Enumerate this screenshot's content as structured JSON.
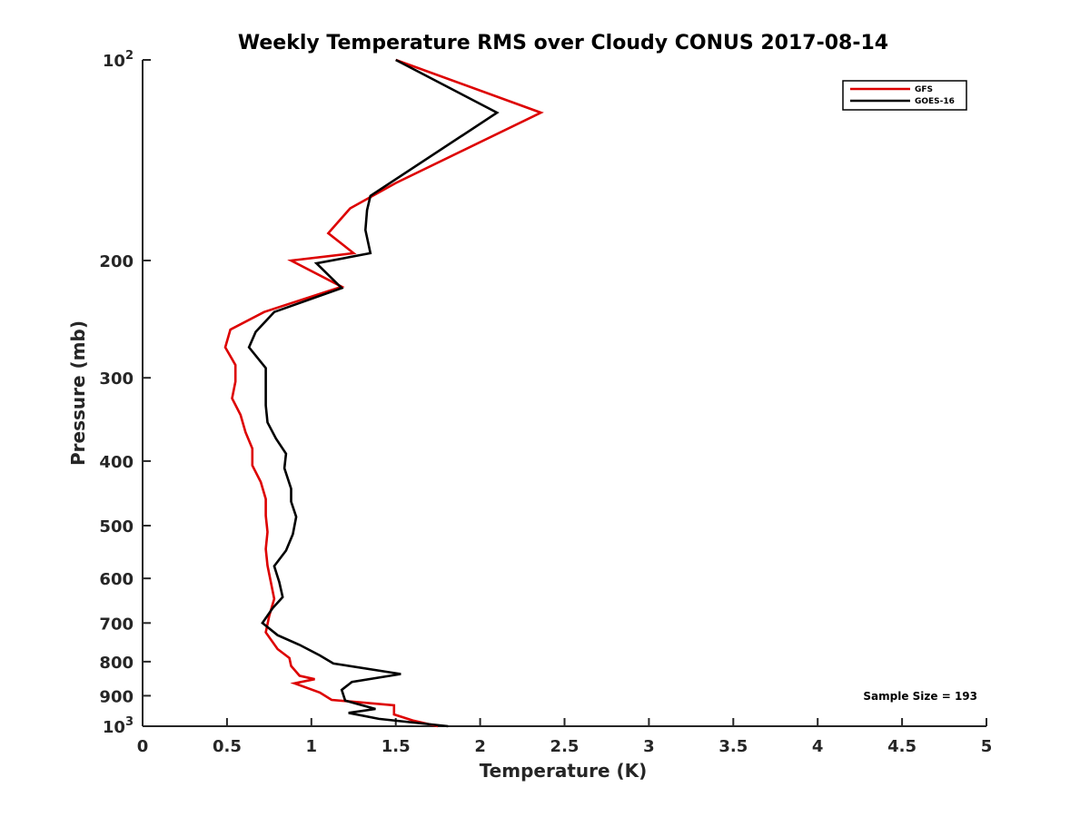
{
  "chart_data": {
    "type": "line",
    "title": "Weekly Temperature RMS over Cloudy CONUS 2017-08-14",
    "xlabel": "Temperature (K)",
    "ylabel": "Pressure (mb)",
    "xlim": [
      0,
      5
    ],
    "ylim": [
      100,
      1000
    ],
    "y_scale": "log",
    "y_reversed": true,
    "x_ticks": [
      0,
      0.5,
      1,
      1.5,
      2,
      2.5,
      3,
      3.5,
      4,
      4.5,
      5
    ],
    "x_tick_labels": [
      "0",
      "0.5",
      "1",
      "1.5",
      "2",
      "2.5",
      "3",
      "3.5",
      "4",
      "4.5",
      "5"
    ],
    "y_ticks": [
      100,
      200,
      300,
      400,
      500,
      600,
      700,
      800,
      900,
      1000
    ],
    "y_tick_labels": [
      {
        "base": "10",
        "sup": "2"
      },
      {
        "base": "200",
        "sup": ""
      },
      {
        "base": "300",
        "sup": ""
      },
      {
        "base": "400",
        "sup": ""
      },
      {
        "base": "500",
        "sup": ""
      },
      {
        "base": "600",
        "sup": ""
      },
      {
        "base": "700",
        "sup": ""
      },
      {
        "base": "800",
        "sup": ""
      },
      {
        "base": "900",
        "sup": ""
      },
      {
        "base": "10",
        "sup": "3"
      }
    ],
    "grid": false,
    "legend_position": "top-right",
    "annotation": "Sample Size = 193",
    "series": [
      {
        "name": "GFS",
        "color": "#dd0000",
        "points": [
          [
            1.5,
            100
          ],
          [
            2.36,
            120
          ],
          [
            1.5,
            153
          ],
          [
            1.23,
            167
          ],
          [
            1.1,
            182
          ],
          [
            1.25,
            195
          ],
          [
            0.88,
            200
          ],
          [
            1.18,
            219
          ],
          [
            0.72,
            239
          ],
          [
            0.52,
            254
          ],
          [
            0.49,
            270
          ],
          [
            0.55,
            287
          ],
          [
            0.55,
            304
          ],
          [
            0.53,
            322
          ],
          [
            0.58,
            341
          ],
          [
            0.61,
            362
          ],
          [
            0.65,
            383
          ],
          [
            0.65,
            406
          ],
          [
            0.7,
            430
          ],
          [
            0.73,
            456
          ],
          [
            0.73,
            483
          ],
          [
            0.74,
            511
          ],
          [
            0.73,
            542
          ],
          [
            0.74,
            574
          ],
          [
            0.76,
            608
          ],
          [
            0.78,
            644
          ],
          [
            0.75,
            683
          ],
          [
            0.73,
            723
          ],
          [
            0.8,
            766
          ],
          [
            0.87,
            790
          ],
          [
            0.88,
            812
          ],
          [
            0.93,
            840
          ],
          [
            1.02,
            850
          ],
          [
            0.9,
            862
          ],
          [
            1.05,
            890
          ],
          [
            1.12,
            913
          ],
          [
            1.49,
            930
          ],
          [
            1.49,
            960
          ],
          [
            1.6,
            980
          ],
          [
            1.75,
            1000
          ]
        ]
      },
      {
        "name": "GOES-16",
        "color": "#000000",
        "points": [
          [
            1.5,
            100
          ],
          [
            2.1,
            120
          ],
          [
            1.35,
            160
          ],
          [
            1.33,
            168
          ],
          [
            1.32,
            180
          ],
          [
            1.35,
            195
          ],
          [
            1.03,
            202
          ],
          [
            1.18,
            220
          ],
          [
            0.78,
            239
          ],
          [
            0.67,
            256
          ],
          [
            0.63,
            270
          ],
          [
            0.73,
            290
          ],
          [
            0.73,
            310
          ],
          [
            0.73,
            330
          ],
          [
            0.74,
            350
          ],
          [
            0.79,
            370
          ],
          [
            0.85,
            390
          ],
          [
            0.84,
            410
          ],
          [
            0.88,
            440
          ],
          [
            0.88,
            460
          ],
          [
            0.91,
            485
          ],
          [
            0.89,
            515
          ],
          [
            0.85,
            545
          ],
          [
            0.78,
            575
          ],
          [
            0.81,
            608
          ],
          [
            0.83,
            640
          ],
          [
            0.77,
            665
          ],
          [
            0.71,
            700
          ],
          [
            0.8,
            730
          ],
          [
            0.93,
            755
          ],
          [
            1.05,
            783
          ],
          [
            1.13,
            805
          ],
          [
            1.53,
            835
          ],
          [
            1.24,
            858
          ],
          [
            1.18,
            882
          ],
          [
            1.2,
            915
          ],
          [
            1.38,
            942
          ],
          [
            1.22,
            955
          ],
          [
            1.4,
            975
          ],
          [
            1.81,
            1000
          ]
        ]
      }
    ]
  }
}
